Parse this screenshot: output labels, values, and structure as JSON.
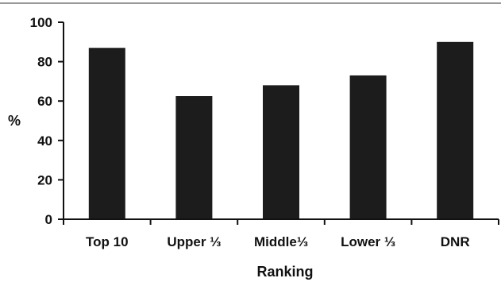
{
  "chart_data": {
    "type": "bar",
    "title": "",
    "xlabel": "Ranking",
    "ylabel": "%",
    "categories": [
      "Top 10",
      "Upper ⅓",
      "Middle⅓",
      "Lower ⅓",
      "DNR"
    ],
    "values": [
      87,
      62.5,
      68,
      73,
      90
    ],
    "ylim": [
      0,
      100
    ],
    "yticks": [
      0,
      20,
      40,
      60,
      80,
      100
    ],
    "grid": false,
    "bar_color": "#1c1c1c"
  }
}
